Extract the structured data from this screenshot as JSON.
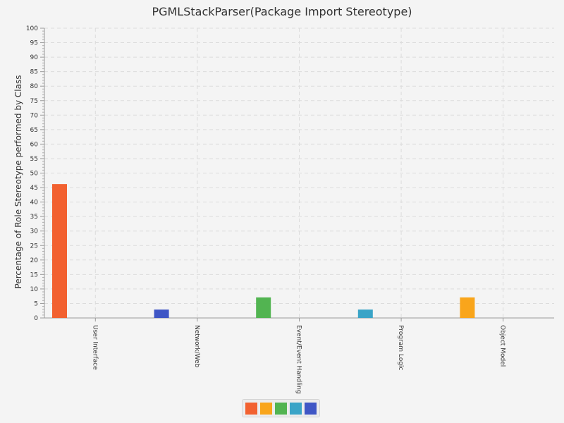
{
  "chart_data": {
    "type": "bar",
    "title": "PGMLStackParser(Package Import Stereotype)",
    "ylabel": "Percentage of Role Stereotype performed by Class",
    "xlabel": "",
    "ylim": [
      0,
      100
    ],
    "y_ticks": [
      "0",
      "5",
      "10",
      "15",
      "20",
      "25",
      "30",
      "35",
      "40",
      "45",
      "50",
      "55",
      "60",
      "65",
      "70",
      "75",
      "80",
      "85",
      "90",
      "95",
      "100"
    ],
    "categories": [
      "User Interface",
      "Network/Web",
      "Event/Event Handling",
      "Program Logic",
      "Object Model"
    ],
    "values": [
      46.2,
      2.9,
      7.1,
      2.9,
      7.1
    ],
    "bar_colors": [
      "#f26130",
      "#3f56c5",
      "#52b451",
      "#3aa4c7",
      "#f9a51b"
    ],
    "grid": true,
    "legend_placement": "bottom-center",
    "legend_colors": [
      "#f26130",
      "#f9a51b",
      "#52b451",
      "#3aa4c7",
      "#3f56c5"
    ]
  }
}
